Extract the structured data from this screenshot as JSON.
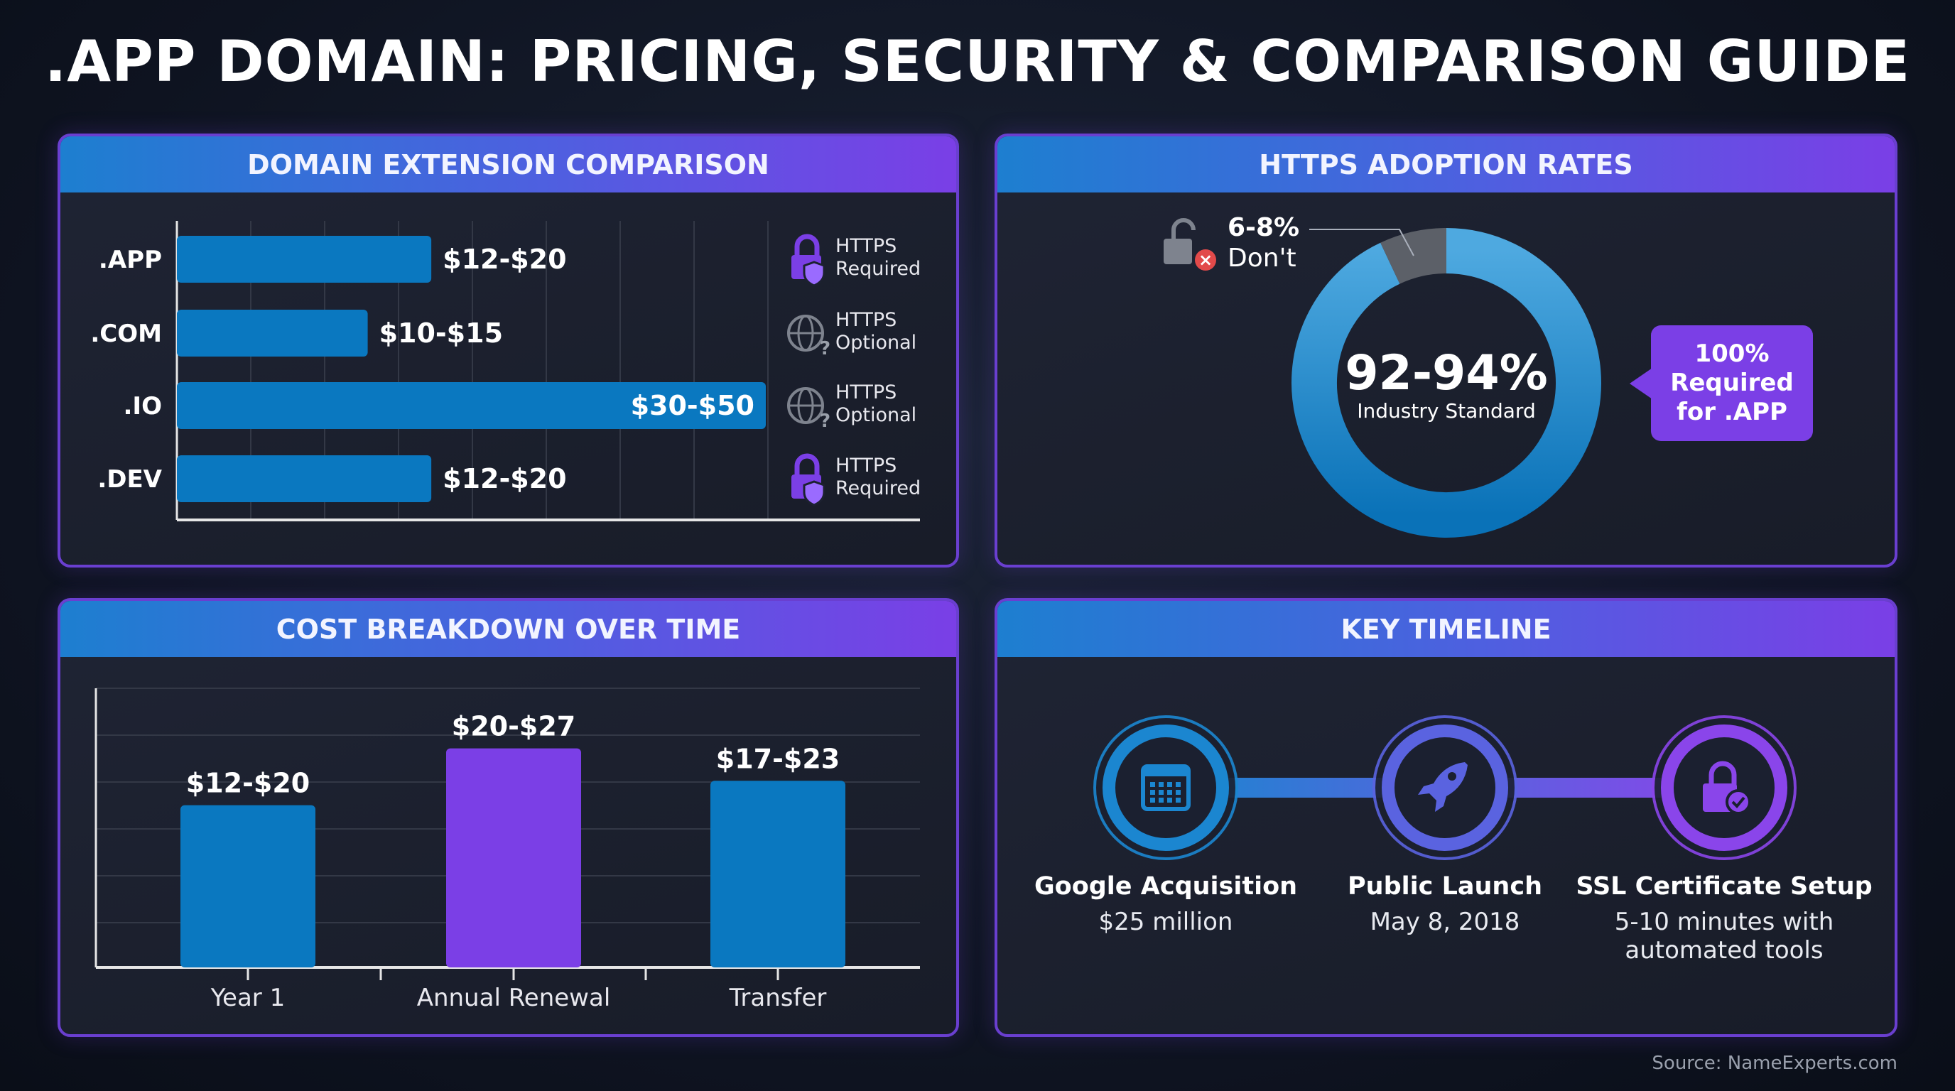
{
  "title": ".APP DOMAIN: PRICING, SECURITY & COMPARISON GUIDE",
  "source": "Source: NameExperts.com",
  "colors": {
    "blue": "#0a78c0",
    "purple": "#7b3fe6",
    "gray": "#5c6068",
    "border": "#6a3fd0"
  },
  "panels": {
    "comparison": {
      "header": "DOMAIN EXTENSION COMPARISON"
    },
    "https": {
      "header": "HTTPS ADOPTION RATES"
    },
    "cost": {
      "header": "COST BREAKDOWN OVER TIME"
    },
    "timeline": {
      "header": "KEY TIMELINE"
    }
  },
  "chart_data": [
    {
      "type": "bar",
      "orientation": "horizontal",
      "categories": [
        ".APP",
        ".COM",
        ".IO",
        ".DEV"
      ],
      "labels": [
        "$12-$20",
        "$10-$15",
        "$30-$50",
        "$12-$20"
      ],
      "ranges": [
        [
          12,
          20
        ],
        [
          10,
          15
        ],
        [
          30,
          50
        ],
        [
          12,
          20
        ]
      ],
      "https": [
        {
          "line1": "HTTPS",
          "line2": "Required",
          "icon": "lock-shield-icon"
        },
        {
          "line1": "HTTPS",
          "line2": "Optional",
          "icon": "globe-question-icon"
        },
        {
          "line1": "HTTPS",
          "line2": "Optional",
          "icon": "globe-question-icon"
        },
        {
          "line1": "HTTPS",
          "line2": "Required",
          "icon": "lock-shield-icon"
        }
      ],
      "grid": true
    },
    {
      "type": "pie",
      "donut": true,
      "slices": [
        {
          "label": "Industry Standard",
          "value": 93,
          "display": "92-94%"
        },
        {
          "label": "Don't",
          "value": 7,
          "display": "6-8%"
        }
      ],
      "callout": {
        "line1": "100%",
        "line2": "Required",
        "line3": "for .APP"
      }
    },
    {
      "type": "bar",
      "categories": [
        "Year 1",
        "Annual Renewal",
        "Transfer"
      ],
      "labels": [
        "$12-$20",
        "$20-$27",
        "$17-$23"
      ],
      "ranges": [
        [
          12,
          20
        ],
        [
          20,
          27
        ],
        [
          17,
          23
        ]
      ],
      "highlight": "Annual Renewal",
      "ylim": [
        0,
        32
      ],
      "grid": true
    }
  ],
  "timeline": [
    {
      "title": "Google Acquisition",
      "sub1": "$25 million",
      "sub2": "",
      "icon": "calendar-icon",
      "color": "#1b86d0"
    },
    {
      "title": "Public Launch",
      "sub1": "May 8, 2018",
      "sub2": "",
      "icon": "rocket-icon",
      "color": "#5a63e0"
    },
    {
      "title": "SSL Certificate Setup",
      "sub1": "5-10 minutes with",
      "sub2": "automated tools",
      "icon": "lock-check-icon",
      "color": "#8a45ea"
    }
  ]
}
